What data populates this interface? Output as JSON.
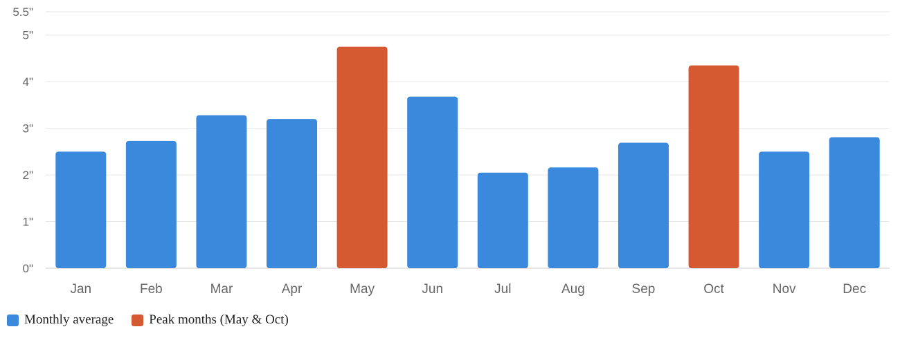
{
  "chart_data": {
    "type": "bar",
    "categories": [
      "Jan",
      "Feb",
      "Mar",
      "Apr",
      "May",
      "Jun",
      "Jul",
      "Aug",
      "Sep",
      "Oct",
      "Nov",
      "Dec"
    ],
    "values": [
      2.5,
      2.73,
      3.28,
      3.2,
      4.75,
      3.68,
      2.05,
      2.16,
      2.69,
      4.35,
      2.5,
      2.81
    ],
    "highlight": [
      "May",
      "Oct"
    ],
    "ylim": [
      0,
      5.5
    ],
    "yticks": [
      0,
      1,
      2,
      3,
      4,
      5,
      5.5
    ],
    "ytick_labels": [
      "0\"",
      "1\"",
      "2\"",
      "3\"",
      "4\"",
      "5\"",
      "5.5\""
    ],
    "title": "",
    "xlabel": "",
    "ylabel": "",
    "grid": true,
    "legend_position": "bottom-left"
  },
  "legend": {
    "items": [
      {
        "label": "Monthly average",
        "color": "#3a89dd"
      },
      {
        "label": "Peak months (May & Oct)",
        "color": "#d65a31"
      }
    ]
  },
  "colors": {
    "normal": "#3a89dd",
    "peak": "#d65a31",
    "grid": "#e6e6e6",
    "axis": "#cccccc"
  }
}
